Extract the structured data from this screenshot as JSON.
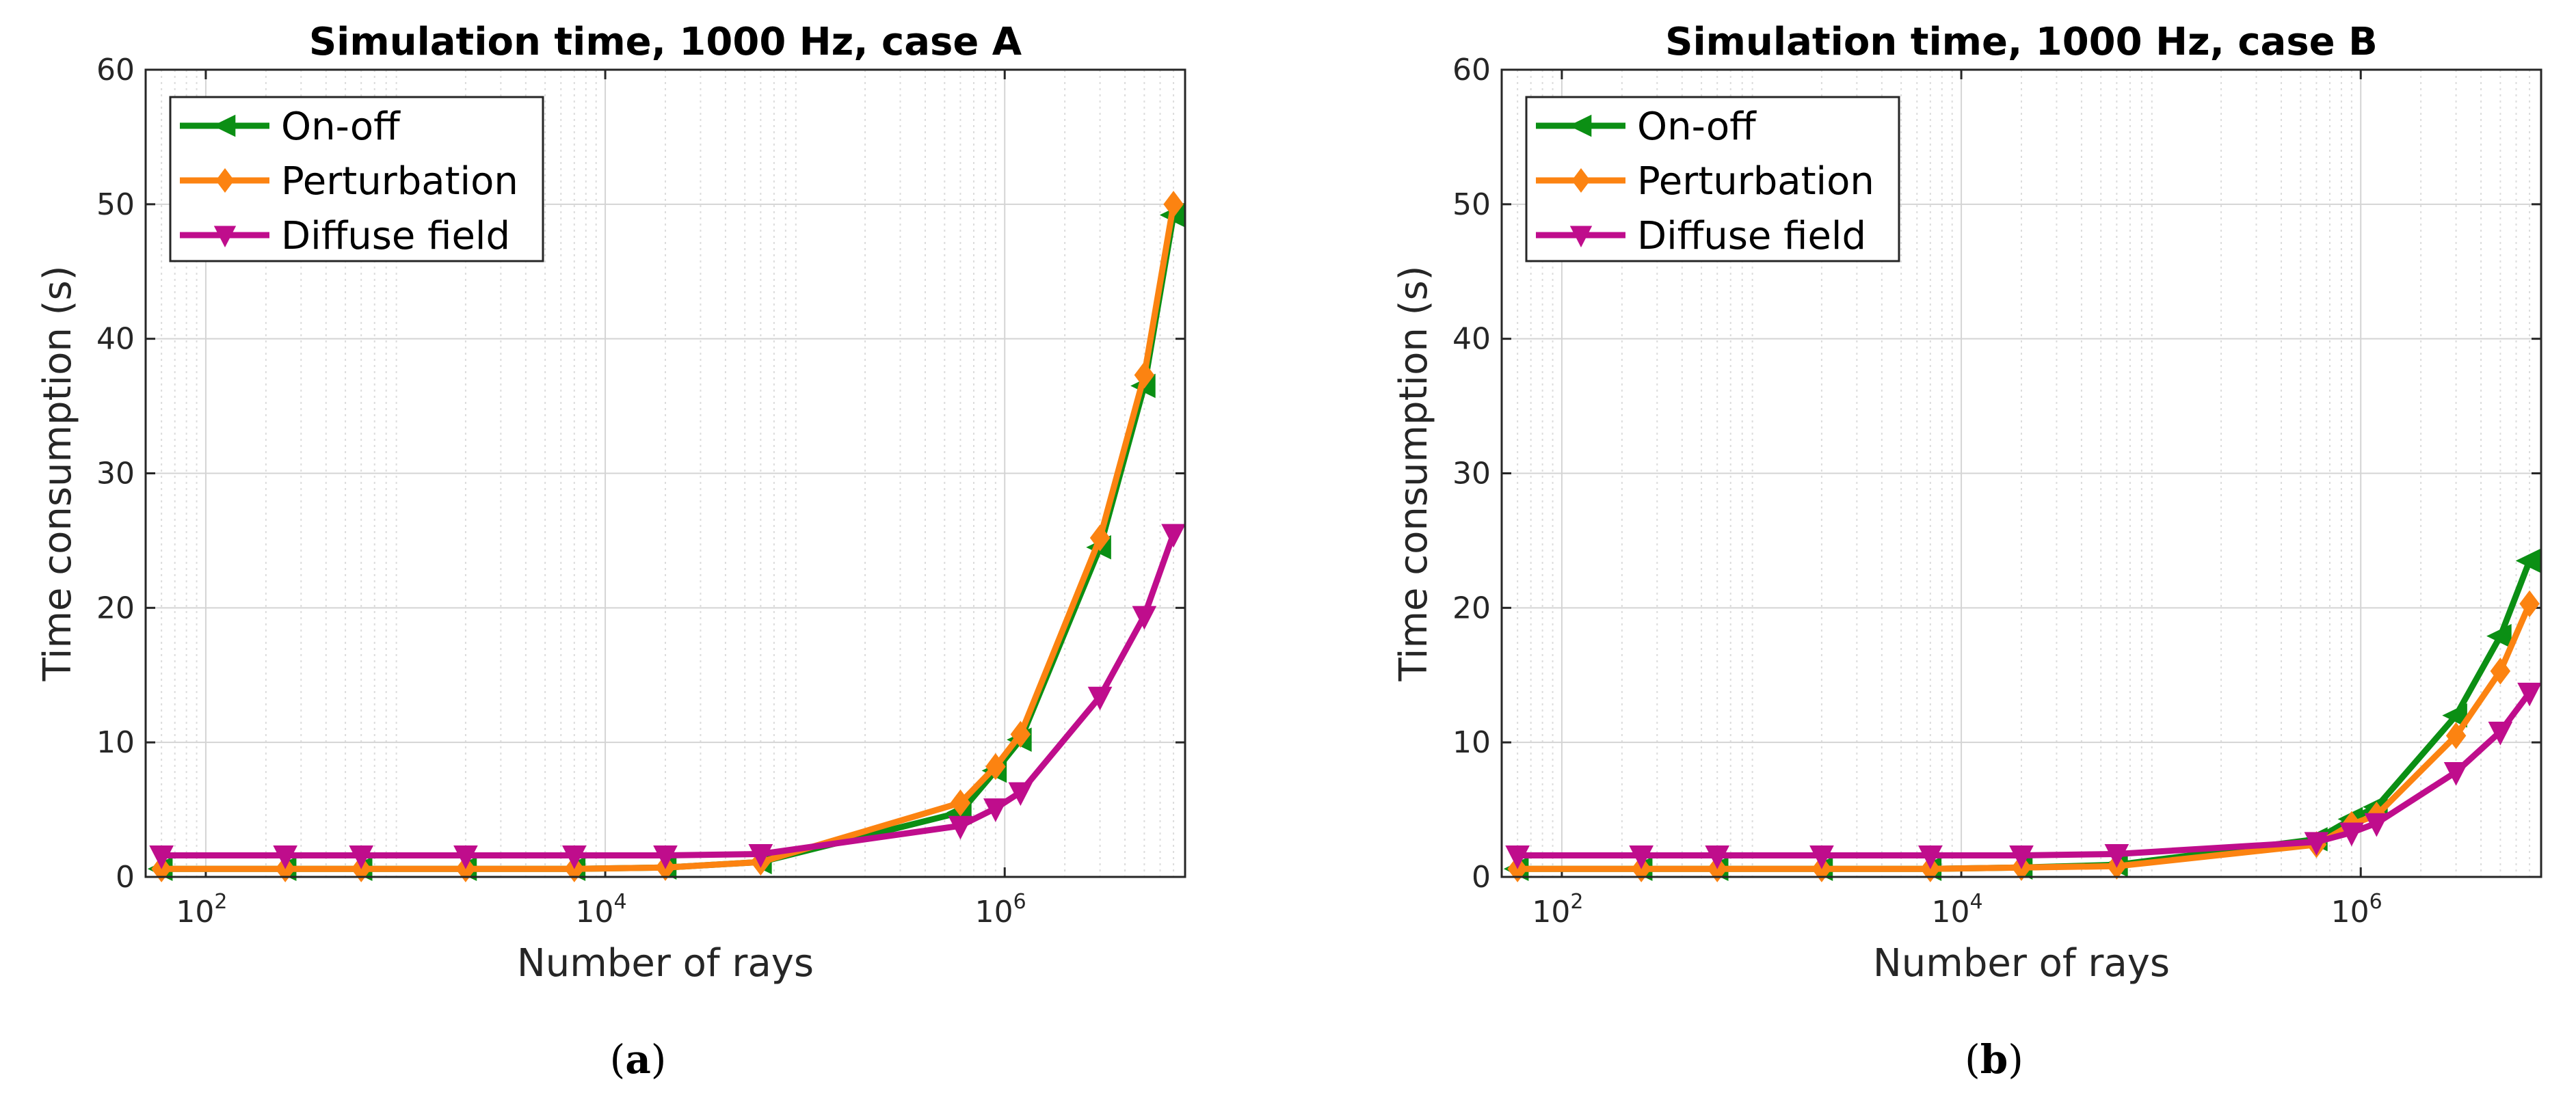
{
  "chart_data": [
    {
      "type": "line",
      "title": "Simulation time, 1000 Hz, case A",
      "xlabel": "Number of rays",
      "ylabel": "Time consumption (s)",
      "xscale": "log",
      "xlim": [
        50,
        8000000
      ],
      "ylim": [
        0,
        60
      ],
      "yticks": [
        0,
        10,
        20,
        30,
        40,
        50,
        60
      ],
      "xticks": [
        {
          "value": 100,
          "base": "10",
          "exp": "2"
        },
        {
          "value": 10000,
          "base": "10",
          "exp": "4"
        },
        {
          "value": 1000000,
          "base": "10",
          "exp": "6"
        }
      ],
      "grid": true,
      "legend_position": "top-left",
      "caption_letter": "a",
      "x": [
        60,
        250,
        600,
        2000,
        7000,
        20000,
        60000,
        600000,
        900000,
        1200000,
        3000000,
        5000000,
        7000000
      ],
      "series": [
        {
          "name": "On-off",
          "color": "#0b8f14",
          "marker": "triangle-left",
          "values": [
            0.6,
            0.6,
            0.6,
            0.6,
            0.6,
            0.7,
            1.1,
            4.8,
            7.9,
            10.2,
            24.5,
            36.5,
            49.2
          ]
        },
        {
          "name": "Perturbation",
          "color": "#fc8311",
          "marker": "diamond",
          "values": [
            0.6,
            0.6,
            0.6,
            0.6,
            0.6,
            0.7,
            1.1,
            5.5,
            8.2,
            10.6,
            25.2,
            37.3,
            50.0
          ]
        },
        {
          "name": "Diffuse field",
          "color": "#bf0d8c",
          "marker": "triangle-down",
          "values": [
            1.6,
            1.6,
            1.6,
            1.6,
            1.6,
            1.6,
            1.7,
            3.8,
            5.1,
            6.3,
            13.4,
            19.4,
            25.5
          ]
        }
      ]
    },
    {
      "type": "line",
      "title": "Simulation time, 1000 Hz, case B",
      "xlabel": "Number of rays",
      "ylabel": "Time consumption (s)",
      "xscale": "log",
      "xlim": [
        50,
        8000000
      ],
      "ylim": [
        0,
        60
      ],
      "yticks": [
        0,
        10,
        20,
        30,
        40,
        50,
        60
      ],
      "xticks": [
        {
          "value": 100,
          "base": "10",
          "exp": "2"
        },
        {
          "value": 10000,
          "base": "10",
          "exp": "4"
        },
        {
          "value": 1000000,
          "base": "10",
          "exp": "6"
        }
      ],
      "grid": true,
      "legend_position": "top-left",
      "caption_letter": "b",
      "x": [
        60,
        250,
        600,
        2000,
        7000,
        20000,
        60000,
        600000,
        900000,
        1200000,
        3000000,
        5000000,
        7000000
      ],
      "series": [
        {
          "name": "On-off",
          "color": "#0b8f14",
          "marker": "triangle-left",
          "values": [
            0.6,
            0.6,
            0.6,
            0.6,
            0.6,
            0.7,
            0.9,
            2.8,
            4.3,
            5.2,
            12.0,
            17.9,
            23.5
          ]
        },
        {
          "name": "Perturbation",
          "color": "#fc8311",
          "marker": "diamond",
          "values": [
            0.6,
            0.6,
            0.6,
            0.6,
            0.6,
            0.7,
            0.8,
            2.4,
            3.9,
            4.6,
            10.5,
            15.3,
            20.3
          ]
        },
        {
          "name": "Diffuse field",
          "color": "#bf0d8c",
          "marker": "triangle-down",
          "values": [
            1.6,
            1.6,
            1.6,
            1.6,
            1.6,
            1.6,
            1.7,
            2.6,
            3.3,
            4.0,
            7.8,
            10.8,
            13.7
          ]
        }
      ]
    }
  ]
}
